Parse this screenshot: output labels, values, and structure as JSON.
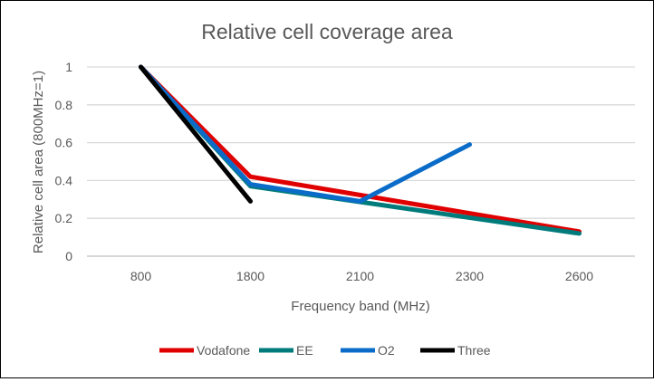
{
  "chart_data": {
    "type": "line",
    "title": "Relative cell coverage area",
    "xlabel": "Frequency band (MHz)",
    "ylabel": "Relative cell area (800MHz=1)",
    "categories": [
      "800",
      "1800",
      "2100",
      "2300",
      "2600"
    ],
    "ylim": [
      0,
      1
    ],
    "yticks": [
      0,
      0.2,
      0.4,
      0.6,
      0.8,
      1
    ],
    "grid": true,
    "legend": "bottom",
    "series": [
      {
        "name": "Vodafone",
        "color": "#E00000",
        "values": [
          1,
          0.42,
          null,
          null,
          0.13
        ]
      },
      {
        "name": "EE",
        "color": "#007B7B",
        "values": [
          1,
          0.37,
          null,
          null,
          0.12
        ]
      },
      {
        "name": "O2",
        "color": "#0A6CC8",
        "values": [
          1,
          0.38,
          0.29,
          0.59,
          null
        ]
      },
      {
        "name": "Three",
        "color": "#000000",
        "values": [
          1,
          0.29,
          null,
          null,
          null
        ]
      }
    ]
  }
}
